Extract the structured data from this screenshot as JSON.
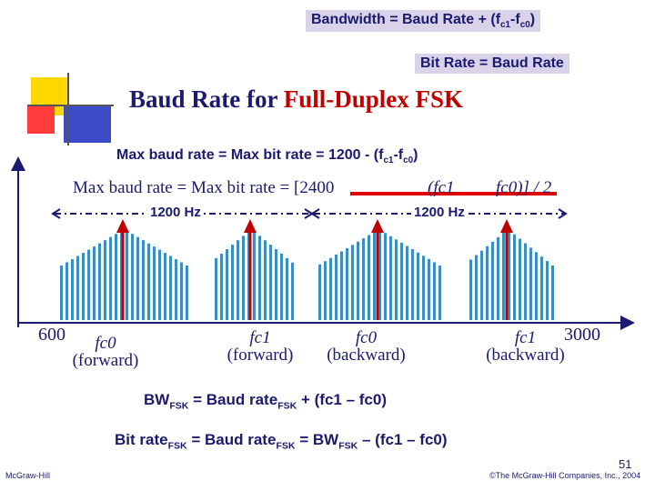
{
  "header": {
    "bandwidth_formula": {
      "a": "Bandwidth = Baud Rate + (f",
      "s1": "c1",
      "b": "-f",
      "s2": "c0",
      "c": ")"
    },
    "bitrate_formula": "Bit Rate = Baud Rate",
    "title_part1": "Baud Rate for",
    "title_part2": "Full-Duplex FSK"
  },
  "diagram": {
    "max_baud_caption": {
      "a": "Max baud rate = Max bit rate = 1200 - (f",
      "s1": "c1",
      "b": "-f",
      "s2": "c0",
      "c": ")"
    },
    "overlay_formula": "Max baud rate = Max bit rate = [2400",
    "overlay_formula_tail": "(fc1",
    "overlay_formula_tail2": "fc0)] / 2",
    "span_label_left": "1200 Hz",
    "span_label_right": "1200 Hz",
    "axis_min": "600",
    "axis_max": "3000",
    "carriers": [
      {
        "freq": "fc0",
        "dir": "(forward)"
      },
      {
        "freq": "fc1",
        "dir": "(forward)"
      },
      {
        "freq": "fc0",
        "dir": "(backward)"
      },
      {
        "freq": "fc1",
        "dir": "(backward)"
      }
    ]
  },
  "formulas": {
    "bw": {
      "a": "BW",
      "s1": "FSK",
      "b": " = Baud rate",
      "s2": "FSK",
      "c": " + (fc1 – fc0)"
    },
    "bitrate": {
      "a": "Bit rate",
      "s1": "FSK",
      "b": " = Baud rate",
      "s2": "FSK",
      "c": " = BW",
      "s3": "FSK",
      "d": " – (fc1 – fc0)"
    }
  },
  "footer": {
    "publisher": "McGraw-Hill",
    "page_number": "51",
    "copyright": "©The McGraw-Hill Companies, Inc., 2004"
  },
  "colors": {
    "navy": "#1a1a6e",
    "red": "#c00000",
    "bar": "#3a8fc0",
    "box": "#d9d2e9"
  }
}
